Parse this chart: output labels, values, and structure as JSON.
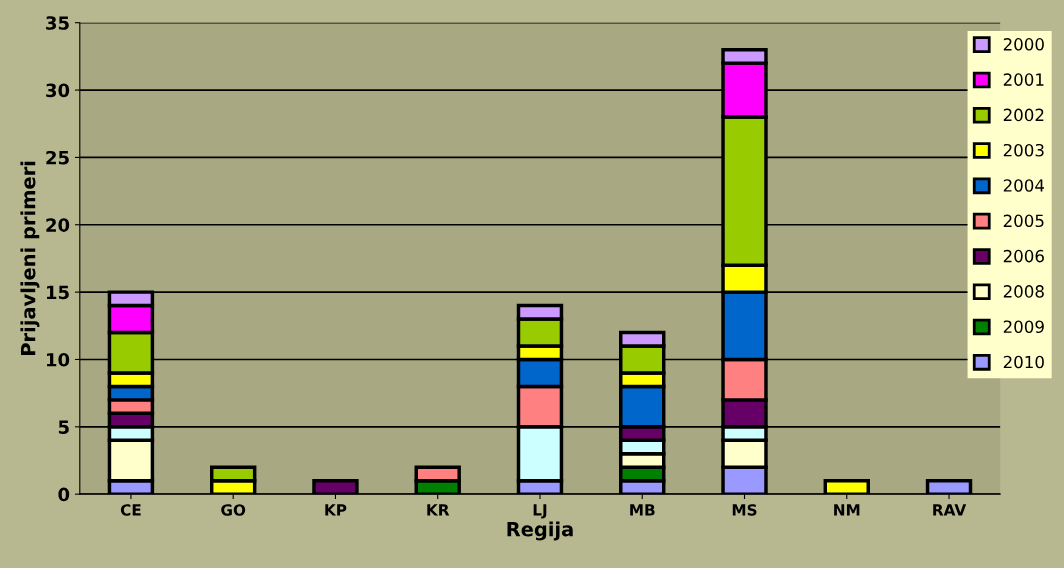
{
  "chart_data": {
    "type": "bar",
    "stacked": true,
    "xlabel": "Regija",
    "ylabel": "Prijavljeni primeri",
    "categories": [
      "CE",
      "GO",
      "KP",
      "KR",
      "LJ",
      "MB",
      "MS",
      "NM",
      "RAV"
    ],
    "ylim": [
      0,
      35
    ],
    "yticks": [
      0,
      5,
      10,
      15,
      20,
      25,
      30,
      35
    ],
    "grid": "y",
    "legend": "top right",
    "series": [
      {
        "name": "2010",
        "color": "#9999ff",
        "values": [
          1,
          0,
          0,
          0,
          1,
          1,
          2,
          0,
          1
        ]
      },
      {
        "name": "2009",
        "color": "#008000",
        "values": [
          0,
          0,
          0,
          1,
          0,
          1,
          0,
          0,
          0
        ]
      },
      {
        "name": "2008",
        "color": "#ffffcc",
        "values": [
          3,
          0,
          0,
          0,
          0,
          1,
          2,
          0,
          0
        ]
      },
      {
        "color": "#ccffff",
        "values": [
          1,
          0,
          0,
          0,
          4,
          1,
          1,
          0,
          0
        ]
      },
      {
        "name": "2006",
        "color": "#660066",
        "values": [
          1,
          0,
          1,
          0,
          0,
          1,
          2,
          0,
          0
        ]
      },
      {
        "name": "2005",
        "color": "#ff8080",
        "values": [
          1,
          0,
          0,
          1,
          3,
          0,
          3,
          0,
          0
        ]
      },
      {
        "name": "2004",
        "color": "#0066cc",
        "values": [
          1,
          0,
          0,
          0,
          2,
          3,
          5,
          0,
          0
        ]
      },
      {
        "name": "2003",
        "color": "#ffff00",
        "values": [
          1,
          1,
          0,
          0,
          1,
          1,
          2,
          1,
          0
        ]
      },
      {
        "name": "2002",
        "color": "#99cc00",
        "values": [
          3,
          1,
          0,
          0,
          2,
          2,
          11,
          0,
          0
        ]
      },
      {
        "name": "2001",
        "color": "#ff00ff",
        "values": [
          2,
          0,
          0,
          0,
          0,
          0,
          4,
          0,
          0
        ]
      },
      {
        "name": "2000",
        "color": "#cc99ff",
        "values": [
          1,
          0,
          0,
          0,
          1,
          1,
          1,
          0,
          0
        ]
      }
    ]
  }
}
